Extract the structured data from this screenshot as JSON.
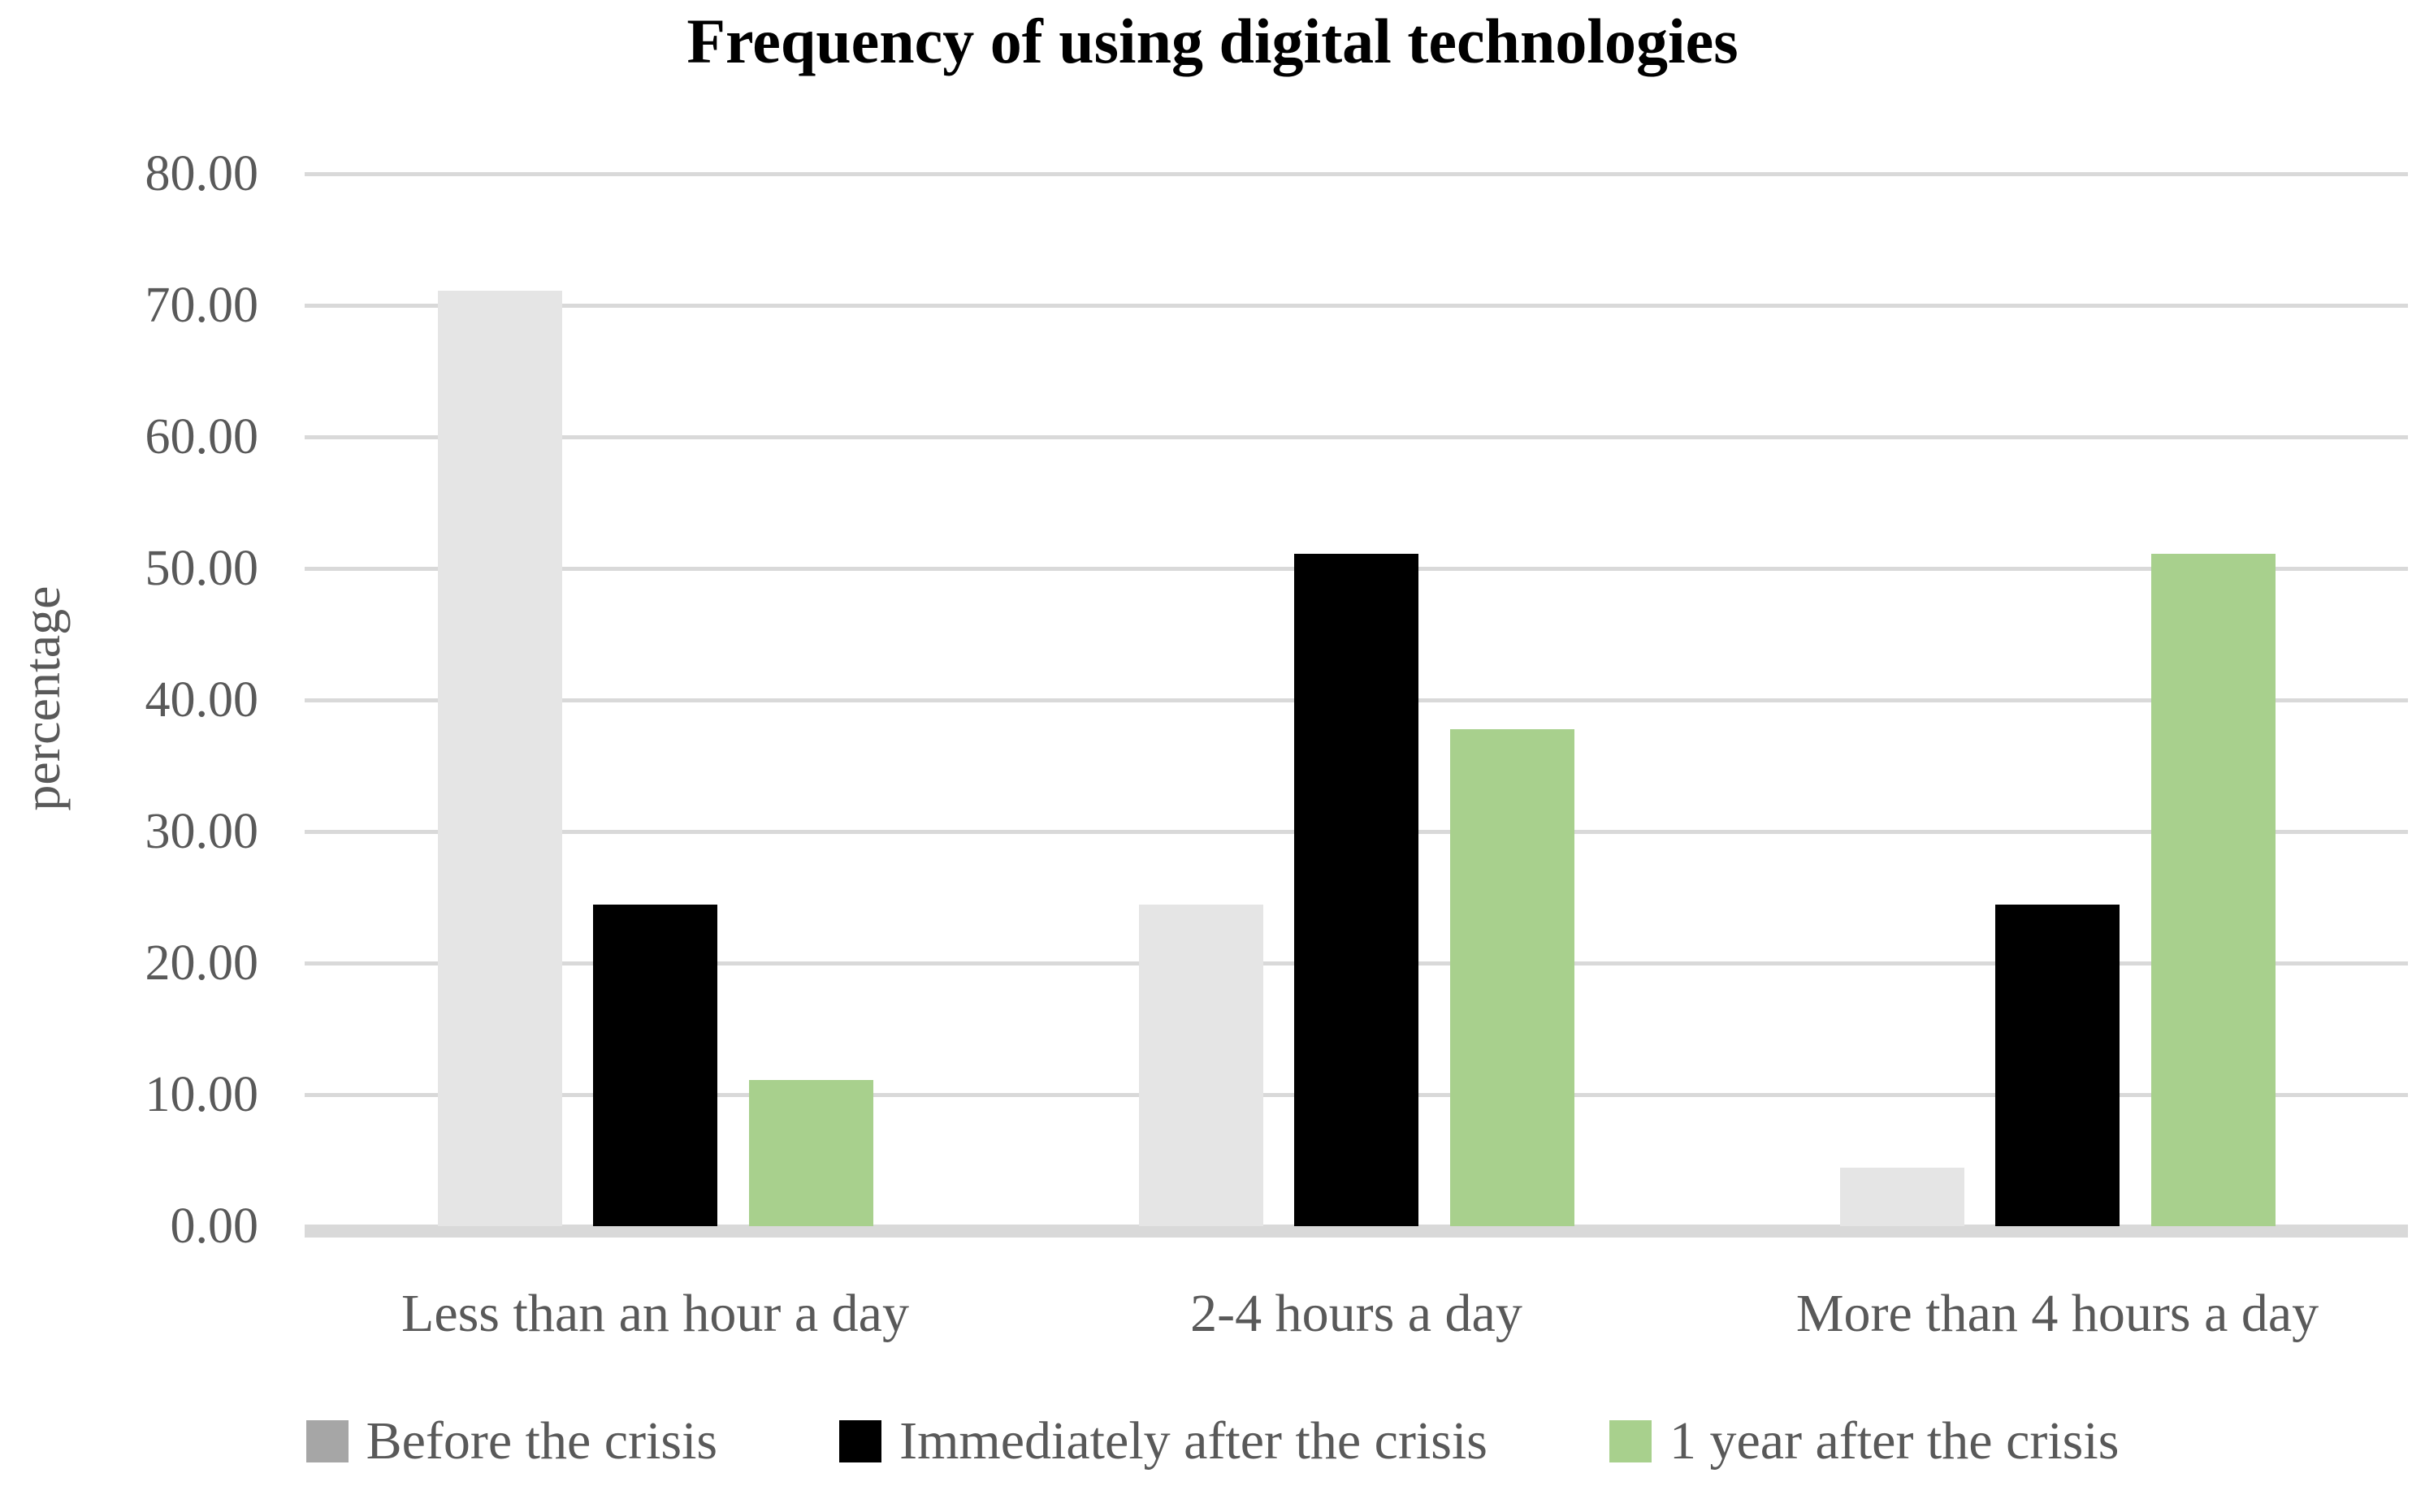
{
  "title": "Frequency of using digital technologies",
  "chart_data": {
    "type": "bar",
    "title": "Frequency of using digital technologies",
    "xlabel": "",
    "ylabel": "percentage",
    "ylim": [
      0,
      80
    ],
    "ytick_labels": [
      "80.00",
      "70.00",
      "60.00",
      "50.00",
      "40.00",
      "30.00",
      "20.00",
      "10.00",
      "0.00"
    ],
    "grid": true,
    "legend_position": "bottom",
    "categories": [
      "Less than an hour a day",
      "2-4 hours a day",
      "More than 4 hours a day"
    ],
    "series": [
      {
        "name": "Before the crisis",
        "values": [
          71.11,
          24.44,
          4.44
        ],
        "bar_color": "#e5e5e5",
        "legend_color": "#a6a6a6"
      },
      {
        "name": "Immediately after the crisis",
        "values": [
          24.44,
          51.11,
          24.44
        ],
        "bar_color": "#000000",
        "legend_color": "#000000"
      },
      {
        "name": "1 year after the crisis",
        "values": [
          11.11,
          37.78,
          51.11
        ],
        "bar_color": "#a8d08d",
        "legend_color": "#a8d08d"
      }
    ],
    "colors": {
      "gridline": "#d9d9d9",
      "axis_text": "#595959",
      "title_text": "#000000"
    }
  }
}
